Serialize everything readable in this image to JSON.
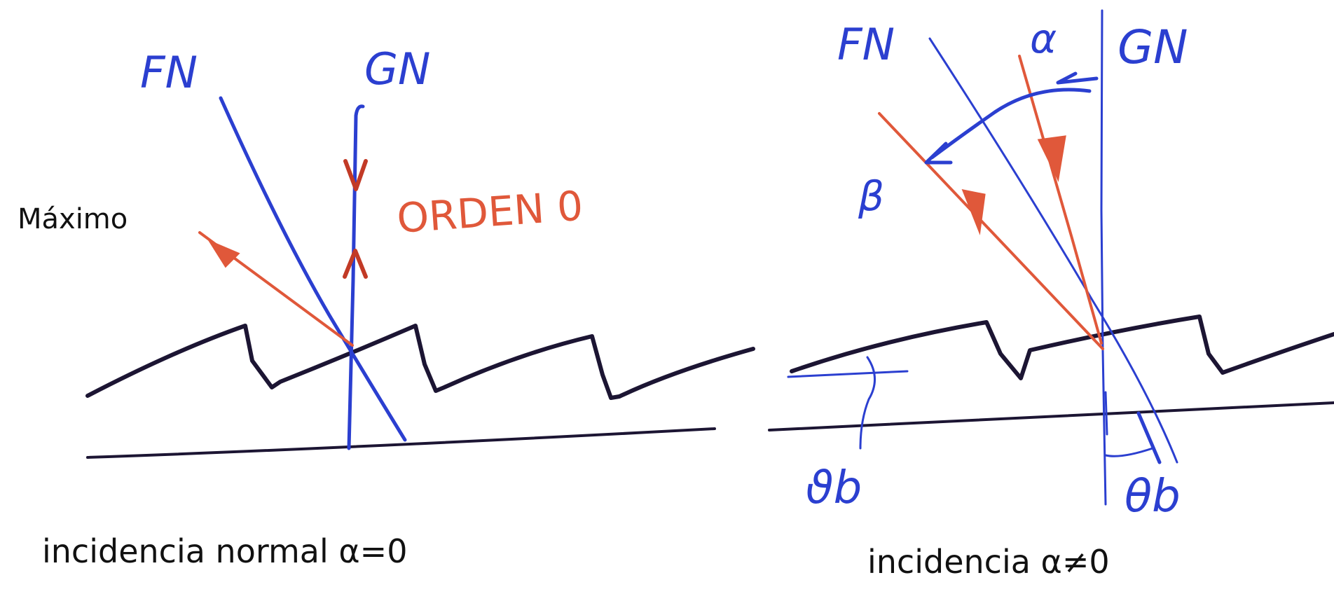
{
  "left_panel": {
    "fn_label": "FN",
    "gn_label": "GN",
    "order_label": "ORDEN 0",
    "maximum_label": "Máximo",
    "caption": "incidencia normal α=0"
  },
  "right_panel": {
    "fn_label": "FN",
    "gn_label": "GN",
    "alpha_label": "α",
    "beta_label": "β",
    "theta_b_left_label": "ϑb",
    "theta_b_right_label": "θb",
    "caption": "incidencia  α≠0"
  },
  "colors": {
    "blue_ink": "#2b3fd0",
    "red_ink": "#e0583a",
    "dark_ink": "#1c1533"
  }
}
